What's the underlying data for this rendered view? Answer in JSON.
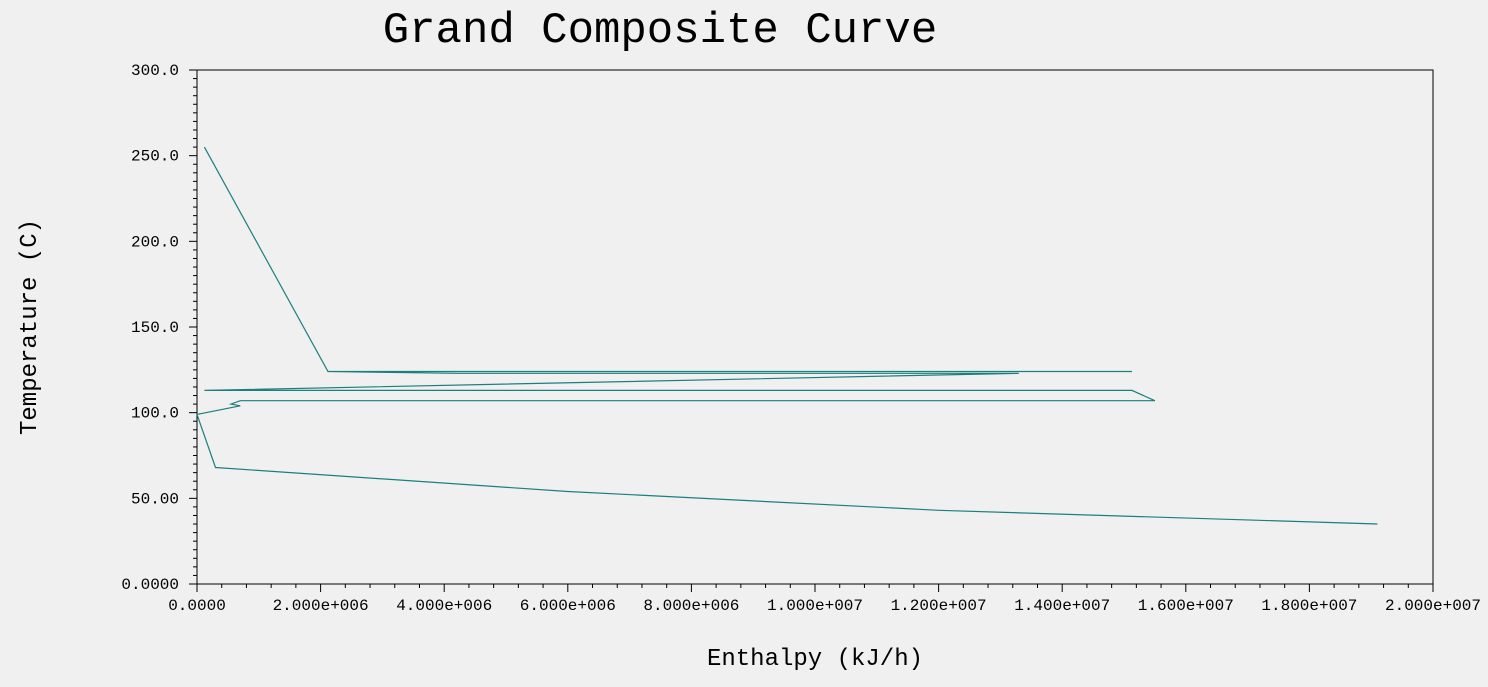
{
  "chart_data": {
    "type": "line",
    "title": "Grand Composite Curve",
    "xlabel": "Enthalpy (kJ/h)",
    "ylabel": "Temperature (C)",
    "xlim": [
      0,
      20000000
    ],
    "ylim": [
      0,
      300
    ],
    "x_tick_labels": [
      "0.0000",
      "2.000e+006",
      "4.000e+006",
      "6.000e+006",
      "8.000e+006",
      "1.000e+007",
      "1.200e+007",
      "1.400e+007",
      "1.600e+007",
      "1.800e+007",
      "2.000e+007"
    ],
    "x_tick_values": [
      0,
      2000000,
      4000000,
      6000000,
      8000000,
      10000000,
      12000000,
      14000000,
      16000000,
      18000000,
      20000000
    ],
    "y_tick_labels": [
      "0.0000",
      "50.00",
      "100.0",
      "150.0",
      "200.0",
      "250.0",
      "300.0"
    ],
    "y_tick_values": [
      0,
      50,
      100,
      150,
      200,
      250,
      300
    ],
    "grid": false,
    "legend": "none",
    "line_color": "#1a7f7f",
    "series": [
      {
        "points": [
          [
            120000,
            255
          ],
          [
            2120000,
            124
          ],
          [
            15130000,
            124
          ],
          [
            2120000,
            124
          ],
          [
            4200000,
            123
          ],
          [
            9500000,
            123
          ],
          [
            13300000,
            123
          ],
          [
            120000,
            113
          ],
          [
            15130000,
            113
          ],
          [
            15500000,
            107
          ],
          [
            700000,
            107
          ],
          [
            550000,
            105
          ],
          [
            700000,
            104
          ],
          [
            0,
            99
          ],
          [
            300000,
            68
          ],
          [
            6000000,
            54
          ],
          [
            12000000,
            43
          ],
          [
            19100000,
            35
          ]
        ]
      }
    ]
  }
}
